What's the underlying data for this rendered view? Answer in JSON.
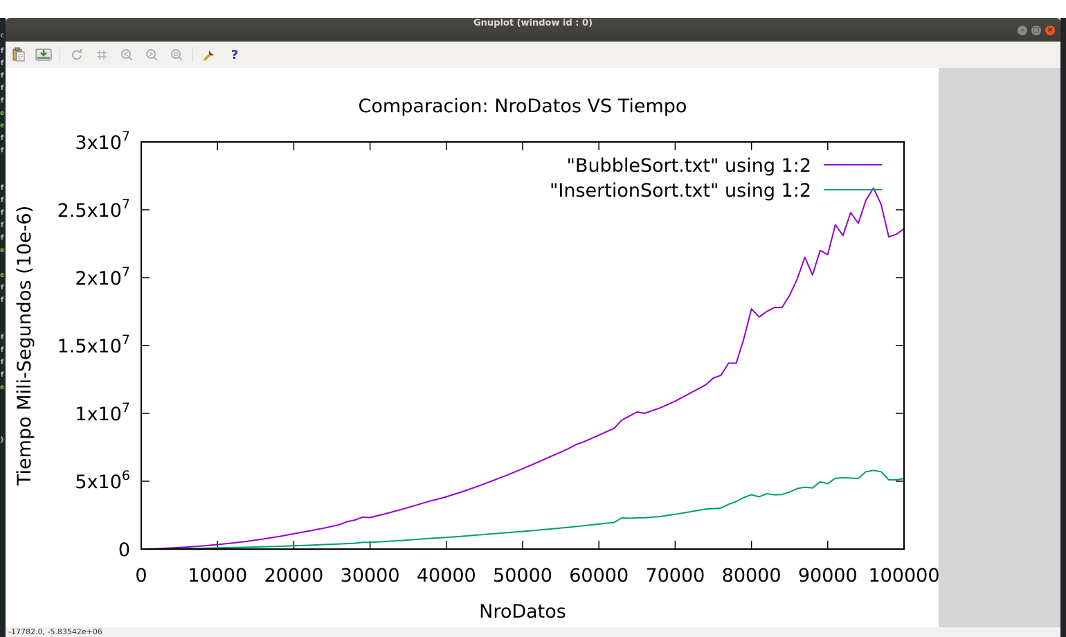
{
  "window": {
    "title": "Gnuplot (window id : 0)",
    "minimize_glyph": "–",
    "maximize_glyph": "□",
    "close_glyph": "×"
  },
  "toolbar": {
    "items": [
      {
        "icon": "clipboard-icon",
        "glyph": "📋",
        "enabled": true
      },
      {
        "icon": "export-icon",
        "glyph": "⬇",
        "enabled": true
      },
      {
        "icon": "replot-icon",
        "glyph": "⟳",
        "enabled": false
      },
      {
        "icon": "grid-icon",
        "glyph": "#",
        "enabled": false
      },
      {
        "icon": "zoom-previous-icon",
        "glyph": "◀",
        "enabled": false
      },
      {
        "icon": "zoom-next-icon",
        "glyph": "▶",
        "enabled": false
      },
      {
        "icon": "unzoom-icon",
        "glyph": "◎",
        "enabled": false
      },
      {
        "icon": "settings-wrench-icon",
        "glyph": "🔧",
        "enabled": true
      },
      {
        "icon": "help-icon",
        "glyph": "?",
        "enabled": true
      }
    ]
  },
  "status": {
    "coords": "-17782.0, -5.83542e+06"
  },
  "colors": {
    "bubble": "#9400d3",
    "insertion": "#009e73"
  },
  "chart_data": {
    "type": "line",
    "title": "Comparacion: NroDatos VS Tiempo",
    "xlabel": "NroDatos",
    "ylabel": "Tiempo Mili-Segundos (10e-6)",
    "xlim": [
      0,
      100000
    ],
    "ylim": [
      0,
      30000000
    ],
    "x_ticks": [
      {
        "value": 0,
        "label": "0"
      },
      {
        "value": 10000,
        "label": "10000"
      },
      {
        "value": 20000,
        "label": "20000"
      },
      {
        "value": 30000,
        "label": "30000"
      },
      {
        "value": 40000,
        "label": "40000"
      },
      {
        "value": 50000,
        "label": "50000"
      },
      {
        "value": 60000,
        "label": "60000"
      },
      {
        "value": 70000,
        "label": "70000"
      },
      {
        "value": 80000,
        "label": "80000"
      },
      {
        "value": 90000,
        "label": "90000"
      },
      {
        "value": 100000,
        "label": "100000"
      }
    ],
    "y_ticks": [
      {
        "value": 0,
        "base": "0",
        "exp": ""
      },
      {
        "value": 5000000,
        "base": "5x10",
        "exp": "6"
      },
      {
        "value": 10000000,
        "base": "1x10",
        "exp": "7"
      },
      {
        "value": 15000000,
        "base": "1.5x10",
        "exp": "7"
      },
      {
        "value": 20000000,
        "base": "2x10",
        "exp": "7"
      },
      {
        "value": 25000000,
        "base": "2.5x10",
        "exp": "7"
      },
      {
        "value": 30000000,
        "base": "3x10",
        "exp": "7"
      }
    ],
    "grid": false,
    "legend_position": "top-right",
    "series": [
      {
        "name": "\"BubbleSort.txt\" using 1:2",
        "x": [
          0,
          2000,
          4000,
          6000,
          8000,
          10000,
          12000,
          14000,
          16000,
          18000,
          20000,
          22000,
          24000,
          26000,
          27000,
          28000,
          29000,
          30000,
          32000,
          34000,
          36000,
          38000,
          39000,
          40000,
          42000,
          44000,
          46000,
          48000,
          50000,
          52000,
          54000,
          56000,
          57000,
          58000,
          60000,
          62000,
          63000,
          64000,
          65000,
          66000,
          67000,
          68000,
          70000,
          72000,
          73000,
          74000,
          75000,
          76000,
          77000,
          78000,
          79000,
          80000,
          81000,
          82000,
          83000,
          84000,
          85000,
          86000,
          87000,
          88000,
          89000,
          90000,
          91000,
          92000,
          93000,
          94000,
          95000,
          96000,
          97000,
          98000,
          99000,
          100000
        ],
        "y": [
          0,
          30000,
          80000,
          150000,
          230000,
          330000,
          450000,
          580000,
          740000,
          920000,
          1130000,
          1330000,
          1550000,
          1800000,
          2020000,
          2140000,
          2350000,
          2320000,
          2600000,
          2900000,
          3230000,
          3560000,
          3700000,
          3850000,
          4210000,
          4600000,
          5020000,
          5460000,
          5920000,
          6400000,
          6900000,
          7400000,
          7700000,
          7900000,
          8400000,
          8900000,
          9500000,
          9800000,
          10100000,
          10000000,
          10200000,
          10400000,
          10900000,
          11500000,
          11800000,
          12100000,
          12600000,
          12800000,
          13700000,
          13700000,
          15500000,
          17700000,
          17100000,
          17500000,
          17800000,
          17800000,
          18700000,
          19900000,
          21500000,
          20200000,
          22000000,
          21700000,
          23900000,
          23100000,
          24800000,
          24000000,
          25700000,
          26600000,
          25400000,
          23000000,
          23200000,
          23600000
        ]
      },
      {
        "name": "\"InsertionSort.txt\" using 1:2",
        "x": [
          0,
          2000,
          4000,
          6000,
          8000,
          10000,
          12000,
          14000,
          16000,
          18000,
          20000,
          22000,
          24000,
          26000,
          28000,
          29000,
          30000,
          32000,
          34000,
          36000,
          38000,
          40000,
          42000,
          44000,
          46000,
          48000,
          50000,
          52000,
          54000,
          56000,
          58000,
          60000,
          62000,
          63000,
          64000,
          65000,
          66000,
          68000,
          70000,
          72000,
          73000,
          74000,
          75000,
          76000,
          77000,
          78000,
          79000,
          80000,
          81000,
          82000,
          83000,
          84000,
          85000,
          86000,
          87000,
          88000,
          89000,
          90000,
          91000,
          92000,
          93000,
          94000,
          95000,
          96000,
          97000,
          98000,
          99000,
          100000
        ],
        "y": [
          0,
          10000,
          20000,
          40000,
          60000,
          80000,
          110000,
          140000,
          170000,
          200000,
          240000,
          280000,
          330000,
          380000,
          430000,
          500000,
          490000,
          560000,
          630000,
          710000,
          790000,
          860000,
          940000,
          1030000,
          1120000,
          1210000,
          1300000,
          1400000,
          1500000,
          1600000,
          1720000,
          1840000,
          1960000,
          2300000,
          2270000,
          2300000,
          2310000,
          2400000,
          2560000,
          2750000,
          2850000,
          2950000,
          2980000,
          3020000,
          3300000,
          3500000,
          3800000,
          4000000,
          3850000,
          4080000,
          4000000,
          4020000,
          4200000,
          4460000,
          4560000,
          4500000,
          4960000,
          4820000,
          5220000,
          5260000,
          5230000,
          5200000,
          5700000,
          5800000,
          5700000,
          5100000,
          5100000,
          5200000
        ]
      }
    ]
  }
}
